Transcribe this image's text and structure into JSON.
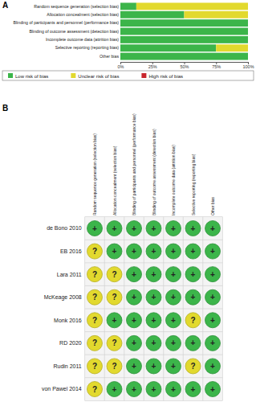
{
  "chart_data": [
    {
      "type": "bar",
      "title": "A",
      "orientation": "horizontal",
      "stacked": true,
      "legend": "bottom",
      "categories": [
        "Random sequence generation (selection bias)",
        "Allocation concealment (selection bias)",
        "Blinding of participants and personnel (performance bias)",
        "Blinding of outcome assessment (detection bias)",
        "Incomplete outcome data (attrition bias)",
        "Selective reporting (reporting bias)",
        "Other bias"
      ],
      "series": [
        {
          "name": "Low risk of bias",
          "color": "#3cb54a",
          "values": [
            12.5,
            50,
            100,
            100,
            100,
            75,
            100
          ]
        },
        {
          "name": "Unclear risk of bias",
          "color": "#e2d92e",
          "values": [
            87.5,
            50,
            0,
            0,
            0,
            25,
            0
          ]
        },
        {
          "name": "High risk of bias",
          "color": "#c8252c",
          "values": [
            0,
            0,
            0,
            0,
            0,
            0,
            0
          ]
        }
      ],
      "xlim": [
        0,
        100
      ],
      "xticks": [
        {
          "value": 0,
          "label": "0%"
        },
        {
          "value": 25,
          "label": "25%"
        },
        {
          "value": 50,
          "label": "50%"
        },
        {
          "value": 75,
          "label": "75%"
        },
        {
          "value": 100,
          "label": "100%"
        }
      ]
    },
    {
      "type": "grid",
      "title": "B",
      "columns": [
        "Random sequence generation (selection bias)",
        "Allocation concealment (selection bias)",
        "Blinding of participants and personnel (performance bias)",
        "Blinding of outcome assessment (detection bias)",
        "Incomplete outcome data (attrition bias)",
        "Selective reporting (reporting bias)",
        "Other bias"
      ],
      "rows": [
        "de Bono 2010",
        "EB 2016",
        "Lara 2011",
        "McKeage 2008",
        "Monk 2016",
        "RD 2020",
        "Rudin 2011",
        "von Pawel 2014"
      ],
      "cells": [
        [
          "+",
          "+",
          "+",
          "+",
          "+",
          "+",
          "+"
        ],
        [
          "?",
          "+",
          "+",
          "+",
          "+",
          "+",
          "+"
        ],
        [
          "?",
          "?",
          "+",
          "+",
          "+",
          "+",
          "+"
        ],
        [
          "?",
          "?",
          "+",
          "+",
          "+",
          "+",
          "+"
        ],
        [
          "?",
          "+",
          "+",
          "+",
          "+",
          "?",
          "+"
        ],
        [
          "?",
          "?",
          "+",
          "+",
          "+",
          "+",
          "+"
        ],
        [
          "?",
          "?",
          "+",
          "+",
          "+",
          "?",
          "+"
        ],
        [
          "?",
          "+",
          "+",
          "+",
          "+",
          "+",
          "+"
        ]
      ]
    }
  ]
}
